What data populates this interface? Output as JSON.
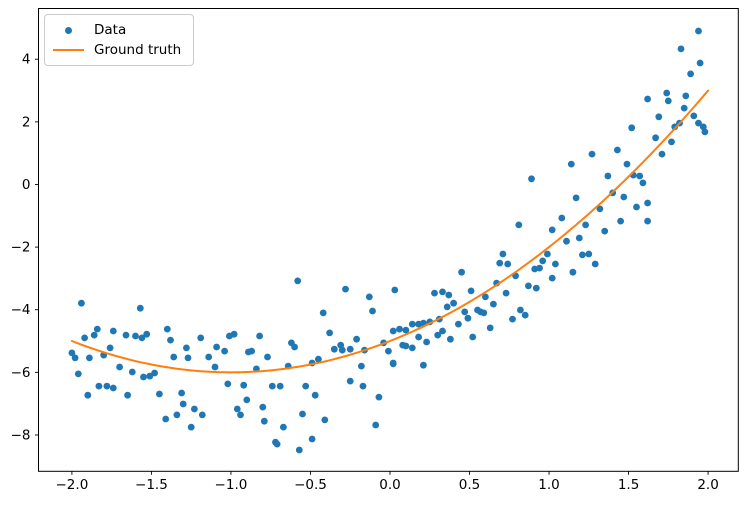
{
  "chart_data": {
    "type": "scatter",
    "title": "",
    "xlabel": "",
    "ylabel": "",
    "xlim": [
      -2.21,
      2.19
    ],
    "ylim": [
      -9.16,
      5.62
    ],
    "grid": false,
    "frame_color": "#000000",
    "background_color": "#ffffff",
    "x_ticks": {
      "values": [
        -2.0,
        -1.5,
        -1.0,
        -0.5,
        0.0,
        0.5,
        1.0,
        1.5,
        2.0
      ],
      "labels": [
        "−2.0",
        "−1.5",
        "−1.0",
        "−0.5",
        "0.0",
        "0.5",
        "1.0",
        "1.5",
        "2.0"
      ]
    },
    "y_ticks": {
      "values": [
        -8,
        -6,
        -4,
        -2,
        0,
        2,
        4
      ],
      "labels": [
        "−8",
        "−6",
        "−4",
        "−2",
        "0",
        "2",
        "4"
      ]
    },
    "legend": {
      "position": "upper-left",
      "items": [
        {
          "label": "Data",
          "type": "marker",
          "color": "#1f77b4"
        },
        {
          "label": "Ground truth",
          "type": "line",
          "color": "#ff7f0e"
        }
      ]
    },
    "series": [
      {
        "name": "Data",
        "type": "scatter",
        "color": "#1f77b4",
        "marker_radius": 3.4,
        "points": [
          [
            -1.94,
            -3.79
          ],
          [
            -1.57,
            -3.95
          ],
          [
            -1.92,
            -4.9
          ],
          [
            -1.86,
            -4.81
          ],
          [
            -1.84,
            -4.62
          ],
          [
            -1.74,
            -4.68
          ],
          [
            -1.66,
            -4.81
          ],
          [
            -1.6,
            -4.84
          ],
          [
            -1.56,
            -4.9
          ],
          [
            -1.53,
            -4.78
          ],
          [
            -1.4,
            -4.62
          ],
          [
            -1.38,
            -4.97
          ],
          [
            -2.0,
            -5.38
          ],
          [
            -1.98,
            -5.54
          ],
          [
            -1.89,
            -5.54
          ],
          [
            -1.8,
            -5.45
          ],
          [
            -1.76,
            -5.22
          ],
          [
            -1.7,
            -5.83
          ],
          [
            -1.96,
            -6.05
          ],
          [
            -1.62,
            -5.99
          ],
          [
            -1.55,
            -6.15
          ],
          [
            -1.51,
            -6.12
          ],
          [
            -1.48,
            -6.02
          ],
          [
            -1.36,
            -5.51
          ],
          [
            -1.28,
            -5.22
          ],
          [
            -1.27,
            -5.54
          ],
          [
            -1.19,
            -4.9
          ],
          [
            -1.09,
            -5.19
          ],
          [
            -1.14,
            -5.51
          ],
          [
            -1.1,
            -5.83
          ],
          [
            -1.83,
            -6.44
          ],
          [
            -1.78,
            -6.44
          ],
          [
            -1.74,
            -6.5
          ],
          [
            -1.9,
            -6.73
          ],
          [
            -1.65,
            -6.73
          ],
          [
            -1.45,
            -6.69
          ],
          [
            -1.31,
            -6.66
          ],
          [
            -1.3,
            -7.01
          ],
          [
            -1.23,
            -7.17
          ],
          [
            -1.18,
            -7.36
          ],
          [
            -1.34,
            -7.36
          ],
          [
            -1.41,
            -7.49
          ],
          [
            -1.25,
            -7.75
          ],
          [
            -0.58,
            -3.08
          ],
          [
            -0.28,
            -3.34
          ],
          [
            -0.13,
            -3.59
          ],
          [
            -0.42,
            -4.1
          ],
          [
            -0.11,
            -4.04
          ],
          [
            -0.38,
            -4.74
          ],
          [
            -1.01,
            -4.84
          ],
          [
            -0.98,
            -4.78
          ],
          [
            -0.82,
            -4.84
          ],
          [
            -1.04,
            -5.32
          ],
          [
            -0.89,
            -5.35
          ],
          [
            -0.87,
            -5.32
          ],
          [
            -0.77,
            -5.51
          ],
          [
            -0.62,
            -5.06
          ],
          [
            -0.6,
            -5.19
          ],
          [
            -0.35,
            -5.26
          ],
          [
            -0.31,
            -5.13
          ],
          [
            -0.3,
            -5.29
          ],
          [
            -0.25,
            -5.26
          ],
          [
            -0.21,
            -4.94
          ],
          [
            -0.16,
            -5.29
          ],
          [
            -0.04,
            -5.06
          ],
          [
            -0.01,
            -5.32
          ],
          [
            -0.64,
            -5.8
          ],
          [
            -0.49,
            -5.7
          ],
          [
            -0.45,
            -5.58
          ],
          [
            -0.84,
            -5.89
          ],
          [
            -1.02,
            -6.37
          ],
          [
            -0.92,
            -6.41
          ],
          [
            -0.74,
            -6.44
          ],
          [
            -0.69,
            -6.44
          ],
          [
            -0.53,
            -6.44
          ],
          [
            -0.47,
            -6.73
          ],
          [
            -0.9,
            -6.88
          ],
          [
            -0.8,
            -7.11
          ],
          [
            -0.96,
            -7.17
          ],
          [
            -0.94,
            -7.36
          ],
          [
            -0.79,
            -7.56
          ],
          [
            -0.55,
            -7.33
          ],
          [
            -0.67,
            -7.75
          ],
          [
            -0.41,
            -7.52
          ],
          [
            -0.72,
            -8.23
          ],
          [
            -0.71,
            -8.29
          ],
          [
            -0.49,
            -8.13
          ],
          [
            -0.57,
            -8.48
          ],
          [
            -0.09,
            -7.68
          ],
          [
            -0.07,
            -6.79
          ],
          [
            -0.18,
            -5.8
          ],
          [
            -0.25,
            -6.28
          ],
          [
            -0.17,
            -6.44
          ],
          [
            0.02,
            -5.73
          ],
          [
            0.71,
            -2.22
          ],
          [
            0.69,
            -2.51
          ],
          [
            0.74,
            -2.54
          ],
          [
            0.91,
            -2.7
          ],
          [
            0.94,
            -2.67
          ],
          [
            0.96,
            -2.44
          ],
          [
            0.99,
            -2.22
          ],
          [
            1.04,
            -2.54
          ],
          [
            1.02,
            -2.99
          ],
          [
            0.45,
            -2.8
          ],
          [
            0.67,
            -3.15
          ],
          [
            0.79,
            -2.92
          ],
          [
            0.87,
            -3.24
          ],
          [
            0.92,
            -3.31
          ],
          [
            0.03,
            -3.37
          ],
          [
            0.28,
            -3.47
          ],
          [
            0.33,
            -3.43
          ],
          [
            0.37,
            -3.53
          ],
          [
            0.51,
            -3.4
          ],
          [
            0.6,
            -3.59
          ],
          [
            0.73,
            -3.47
          ],
          [
            0.36,
            -3.91
          ],
          [
            0.4,
            -3.79
          ],
          [
            0.47,
            -4.07
          ],
          [
            0.55,
            -4.01
          ],
          [
            0.57,
            -4.07
          ],
          [
            0.59,
            -4.1
          ],
          [
            0.65,
            -3.82
          ],
          [
            0.77,
            -4.3
          ],
          [
            0.82,
            -4.01
          ],
          [
            0.85,
            -4.17
          ],
          [
            0.14,
            -4.46
          ],
          [
            0.18,
            -4.46
          ],
          [
            0.21,
            -4.43
          ],
          [
            0.25,
            -4.39
          ],
          [
            0.31,
            -4.3
          ],
          [
            0.06,
            -4.62
          ],
          [
            0.1,
            -4.65
          ],
          [
            0.02,
            -4.68
          ],
          [
            0.43,
            -4.46
          ],
          [
            0.49,
            -4.27
          ],
          [
            0.63,
            -4.58
          ],
          [
            0.33,
            -4.68
          ],
          [
            0.18,
            -4.87
          ],
          [
            0.23,
            -5.03
          ],
          [
            0.3,
            -4.81
          ],
          [
            0.38,
            -4.94
          ],
          [
            0.52,
            -4.87
          ],
          [
            0.08,
            -5.13
          ],
          [
            0.1,
            -5.16
          ],
          [
            0.14,
            -5.22
          ],
          [
            0.21,
            -5.77
          ],
          [
            0.02,
            -5.7
          ],
          [
            1.94,
            4.9
          ],
          [
            1.83,
            4.33
          ],
          [
            1.95,
            3.88
          ],
          [
            1.89,
            3.53
          ],
          [
            1.74,
            2.92
          ],
          [
            1.86,
            2.83
          ],
          [
            1.62,
            2.73
          ],
          [
            1.75,
            2.67
          ],
          [
            1.85,
            2.44
          ],
          [
            1.69,
            2.16
          ],
          [
            1.91,
            2.19
          ],
          [
            1.82,
            1.96
          ],
          [
            1.79,
            1.84
          ],
          [
            1.94,
            1.96
          ],
          [
            1.97,
            1.84
          ],
          [
            1.98,
            1.68
          ],
          [
            1.52,
            1.81
          ],
          [
            1.67,
            1.49
          ],
          [
            1.77,
            1.36
          ],
          [
            1.27,
            0.97
          ],
          [
            1.43,
            1.1
          ],
          [
            1.71,
            0.97
          ],
          [
            1.49,
            0.65
          ],
          [
            1.14,
            0.65
          ],
          [
            1.37,
            0.27
          ],
          [
            1.53,
            0.3
          ],
          [
            1.57,
            0.27
          ],
          [
            1.59,
            0.05
          ],
          [
            1.4,
            -0.27
          ],
          [
            1.47,
            -0.4
          ],
          [
            1.17,
            -0.43
          ],
          [
            1.32,
            -0.78
          ],
          [
            1.55,
            -0.72
          ],
          [
            1.62,
            -0.59
          ],
          [
            1.45,
            -1.17
          ],
          [
            1.62,
            -1.17
          ],
          [
            1.23,
            -1.29
          ],
          [
            1.35,
            -1.49
          ],
          [
            1.19,
            -1.71
          ],
          [
            1.11,
            -1.81
          ],
          [
            1.21,
            -2.25
          ],
          [
            1.25,
            -2.22
          ],
          [
            1.29,
            -2.54
          ],
          [
            1.15,
            -2.8
          ],
          [
            0.89,
            0.18
          ],
          [
            0.81,
            -1.29
          ],
          [
            1.02,
            -1.45
          ],
          [
            1.08,
            -1.07
          ]
        ]
      },
      {
        "name": "Ground truth",
        "type": "line",
        "color": "#ff7f0e",
        "line_width": 2,
        "model": "quadratic",
        "coeffs": [
          1,
          2,
          -5
        ],
        "x_range": [
          -2,
          2
        ]
      }
    ]
  }
}
